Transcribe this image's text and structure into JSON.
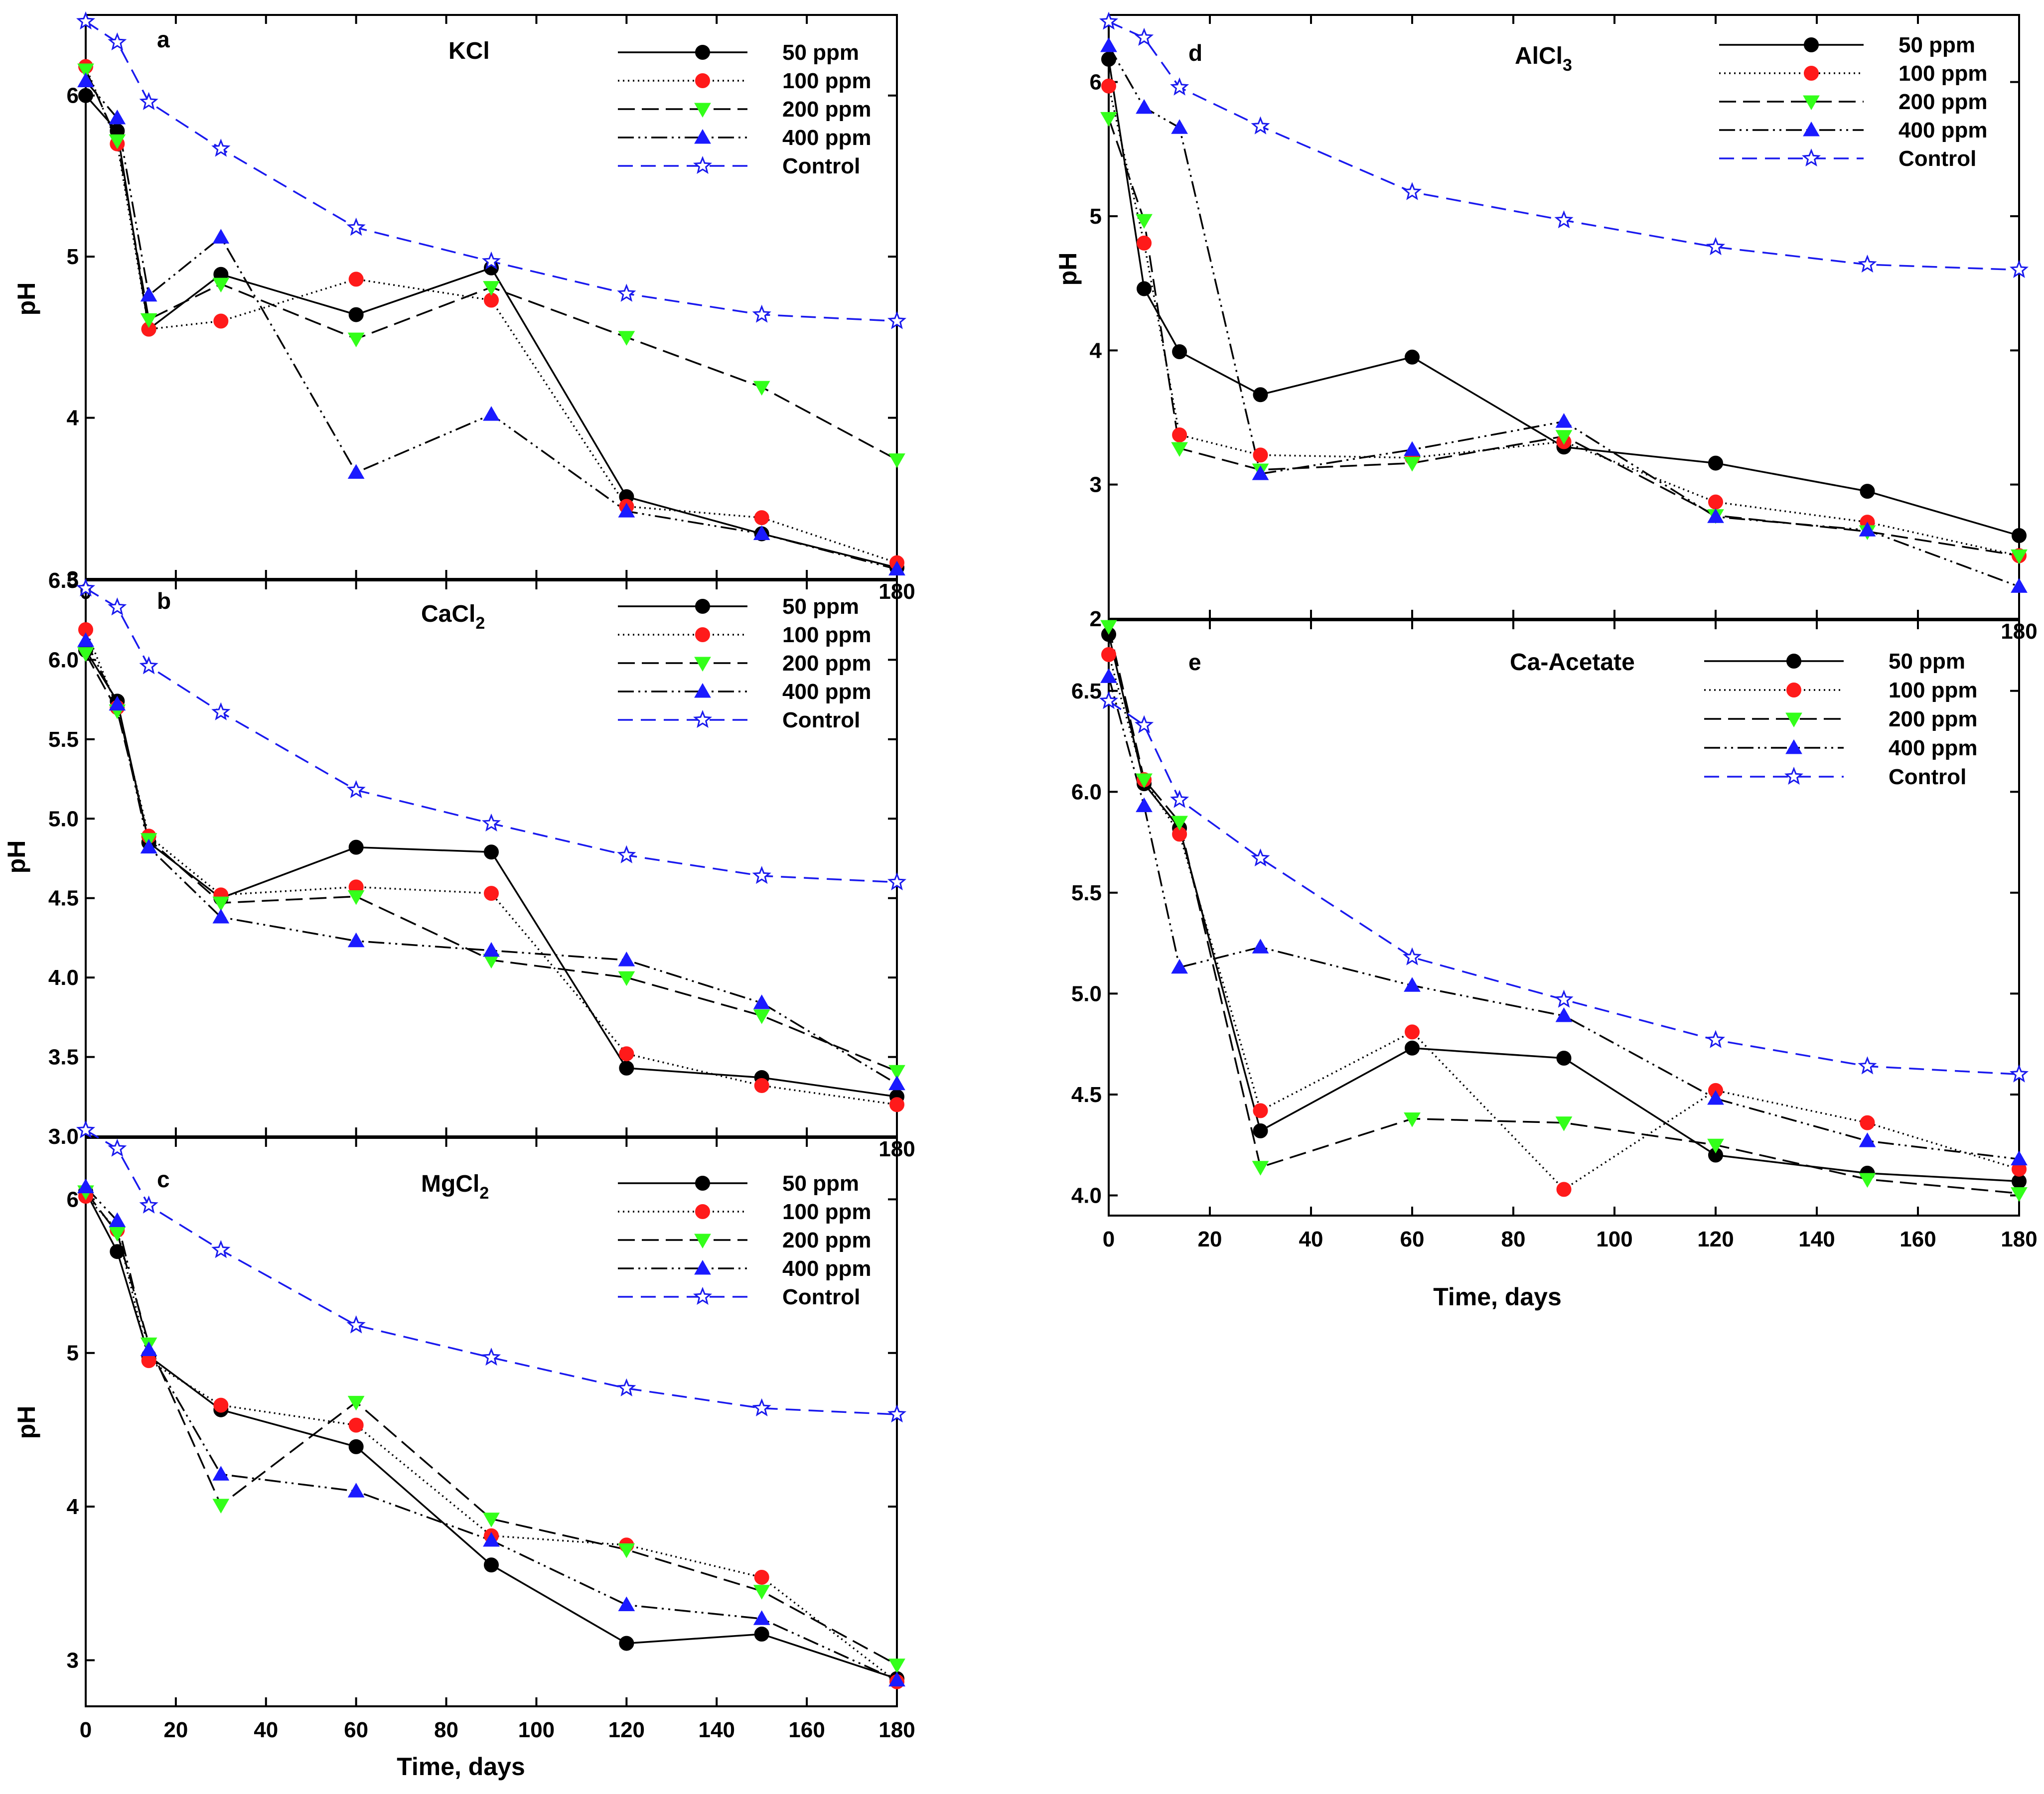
{
  "figure": {
    "ylabel": "pH",
    "xlabel": "Time, days"
  },
  "styles": {
    "50 ppm": {
      "color": "#000000",
      "dash": "none",
      "marker": "circle",
      "fill": "#000000"
    },
    "100 ppm": {
      "color": "#000000",
      "dash": "3 7",
      "marker": "circle",
      "fill": "#ff1a1a"
    },
    "200 ppm": {
      "color": "#000000",
      "dash": "34 14",
      "marker": "tri-down",
      "fill": "#33ff1a"
    },
    "400 ppm": {
      "color": "#000000",
      "dash": "32 9 4 9 4 9",
      "marker": "tri-up",
      "fill": "#1a1aff"
    },
    "Control": {
      "color": "#1a1aee",
      "dash": "30 16",
      "marker": "star",
      "fill": "#ffffff"
    }
  },
  "chart_data": [
    {
      "id": "a",
      "type": "line",
      "letter": "a",
      "title": "KCl",
      "title_sub": "",
      "xlabel": "",
      "ylabel": "pH",
      "xlim": [
        0,
        180
      ],
      "ylim": [
        3,
        6.5
      ],
      "yticks": [
        3,
        4,
        5,
        6
      ],
      "ytick_labels": [
        "3",
        "4",
        "5",
        "6"
      ],
      "xticks": [],
      "xtick_labels": [],
      "corner_tick_labels": [
        "0",
        "180"
      ],
      "x": [
        0,
        7,
        14,
        30,
        60,
        90,
        120,
        150,
        180
      ],
      "series": [
        {
          "name": "50 ppm",
          "values": [
            6.0,
            5.78,
            4.55,
            4.89,
            4.64,
            4.93,
            3.51,
            3.28,
            3.07
          ]
        },
        {
          "name": "100 ppm",
          "values": [
            6.18,
            5.7,
            4.55,
            4.6,
            4.86,
            4.73,
            3.45,
            3.38,
            3.1
          ]
        },
        {
          "name": "200 ppm",
          "values": [
            6.16,
            5.72,
            4.61,
            4.83,
            4.49,
            4.81,
            4.5,
            4.19,
            3.74
          ]
        },
        {
          "name": "400 ppm",
          "values": [
            6.09,
            5.86,
            4.76,
            5.12,
            3.66,
            4.02,
            3.42,
            3.28,
            3.06
          ]
        },
        {
          "name": "Control",
          "values": [
            6.46,
            6.33,
            5.96,
            5.67,
            5.18,
            4.97,
            4.77,
            4.64,
            4.6
          ]
        }
      ]
    },
    {
      "id": "b",
      "type": "line",
      "letter": "b",
      "title": "CaCl",
      "title_sub": "2",
      "xlabel": "",
      "ylabel": "pH",
      "xlim": [
        0,
        180
      ],
      "ylim": [
        3,
        6.5
      ],
      "yticks": [
        3,
        3.5,
        4,
        4.5,
        5,
        5.5,
        6,
        6.5
      ],
      "ytick_labels": [
        "3.0",
        "3.5",
        "4.0",
        "4.5",
        "5.0",
        "5.5",
        "6.0",
        "6.5"
      ],
      "xticks": [],
      "xtick_labels": [],
      "corner_tick_labels": [
        "180"
      ],
      "x": [
        0,
        7,
        14,
        30,
        60,
        90,
        120,
        150,
        180
      ],
      "series": [
        {
          "name": "50 ppm",
          "values": [
            6.06,
            5.74,
            4.85,
            4.5,
            4.82,
            4.79,
            3.43,
            3.37,
            3.25
          ]
        },
        {
          "name": "100 ppm",
          "values": [
            6.19,
            5.7,
            4.89,
            4.52,
            4.57,
            4.53,
            3.52,
            3.32,
            3.2
          ]
        },
        {
          "name": "200 ppm",
          "values": [
            6.04,
            5.68,
            4.87,
            4.47,
            4.51,
            4.11,
            4.0,
            3.76,
            3.41
          ]
        },
        {
          "name": "400 ppm",
          "values": [
            6.12,
            5.72,
            4.82,
            4.38,
            4.23,
            4.17,
            4.11,
            3.84,
            3.33
          ]
        },
        {
          "name": "Control",
          "values": [
            6.45,
            6.33,
            5.96,
            5.67,
            5.18,
            4.97,
            4.77,
            4.64,
            4.6
          ]
        }
      ]
    },
    {
      "id": "c",
      "type": "line",
      "letter": "c",
      "title": "MgCl",
      "title_sub": "2",
      "xlabel": "Time, days",
      "ylabel": "pH",
      "xlim": [
        0,
        180
      ],
      "ylim": [
        2.7,
        6.4
      ],
      "yticks": [
        3,
        4,
        5,
        6
      ],
      "ytick_labels": [
        "3",
        "4",
        "5",
        "6"
      ],
      "xticks": [
        0,
        20,
        40,
        60,
        80,
        100,
        120,
        140,
        160,
        180
      ],
      "xtick_labels": [
        "0",
        "20",
        "40",
        "60",
        "80",
        "100",
        "120",
        "140",
        "160",
        "180"
      ],
      "corner_tick_labels": [],
      "x": [
        0,
        7,
        14,
        30,
        60,
        90,
        120,
        150,
        180
      ],
      "series": [
        {
          "name": "50 ppm",
          "values": [
            6.05,
            5.66,
            4.98,
            4.63,
            4.39,
            3.62,
            3.11,
            3.17,
            2.88
          ]
        },
        {
          "name": "100 ppm",
          "values": [
            6.02,
            5.8,
            4.95,
            4.66,
            4.53,
            3.81,
            3.75,
            3.54,
            2.86
          ]
        },
        {
          "name": "200 ppm",
          "values": [
            6.05,
            5.78,
            5.06,
            4.01,
            4.68,
            3.92,
            3.72,
            3.45,
            2.97
          ]
        },
        {
          "name": "400 ppm",
          "values": [
            6.08,
            5.86,
            5.02,
            4.21,
            4.1,
            3.78,
            3.36,
            3.27,
            2.87
          ]
        },
        {
          "name": "Control",
          "values": [
            6.45,
            6.33,
            5.96,
            5.67,
            5.18,
            4.97,
            4.77,
            4.64,
            4.6
          ]
        }
      ]
    },
    {
      "id": "d",
      "type": "line",
      "letter": "d",
      "title": "AlCl",
      "title_sub": "3",
      "xlabel": "",
      "ylabel": "pH",
      "xlim": [
        0,
        180
      ],
      "ylim": [
        2,
        6.5
      ],
      "yticks": [
        2,
        3,
        4,
        5,
        6
      ],
      "ytick_labels": [
        "2",
        "3",
        "4",
        "5",
        "6"
      ],
      "xticks": [],
      "xtick_labels": [],
      "corner_tick_labels": [
        "180"
      ],
      "x": [
        0,
        7,
        14,
        30,
        60,
        90,
        120,
        150,
        180
      ],
      "series": [
        {
          "name": "50 ppm",
          "values": [
            6.17,
            4.46,
            3.99,
            3.67,
            3.95,
            3.28,
            3.16,
            2.95,
            2.62
          ]
        },
        {
          "name": "100 ppm",
          "values": [
            5.97,
            4.8,
            3.37,
            3.22,
            3.2,
            3.32,
            2.87,
            2.72,
            2.47
          ]
        },
        {
          "name": "200 ppm",
          "values": [
            5.73,
            4.97,
            3.27,
            3.11,
            3.16,
            3.36,
            2.77,
            2.65,
            2.47
          ]
        },
        {
          "name": "400 ppm",
          "values": [
            6.27,
            5.81,
            5.66,
            3.08,
            3.26,
            3.47,
            2.76,
            2.66,
            2.24
          ]
        },
        {
          "name": "Control",
          "values": [
            6.45,
            6.33,
            5.96,
            5.67,
            5.18,
            4.97,
            4.77,
            4.64,
            4.6
          ]
        }
      ]
    },
    {
      "id": "e",
      "type": "line",
      "letter": "e",
      "title": "Ca-Acetate",
      "title_sub": "",
      "xlabel": "Time, days",
      "ylabel": "",
      "xlim": [
        0,
        180
      ],
      "ylim": [
        3.9,
        6.85
      ],
      "yticks": [
        4,
        4.5,
        5,
        5.5,
        6,
        6.5
      ],
      "ytick_labels": [
        "4.0",
        "4.5",
        "5.0",
        "5.5",
        "6.0",
        "6.5"
      ],
      "xticks": [
        0,
        20,
        40,
        60,
        80,
        100,
        120,
        140,
        160,
        180
      ],
      "xtick_labels": [
        "0",
        "20",
        "40",
        "60",
        "80",
        "100",
        "120",
        "140",
        "160",
        "180"
      ],
      "corner_tick_labels": [],
      "x": [
        0,
        7,
        14,
        30,
        60,
        90,
        120,
        150,
        180
      ],
      "series": [
        {
          "name": "50 ppm",
          "values": [
            6.78,
            6.04,
            5.82,
            4.32,
            4.73,
            4.68,
            4.2,
            4.11,
            4.07
          ]
        },
        {
          "name": "100 ppm",
          "values": [
            6.68,
            6.06,
            5.79,
            4.42,
            4.81,
            4.03,
            4.52,
            4.36,
            4.13
          ]
        },
        {
          "name": "200 ppm",
          "values": [
            6.82,
            6.06,
            5.85,
            4.14,
            4.38,
            4.36,
            4.25,
            4.08,
            4.01
          ]
        },
        {
          "name": "400 ppm",
          "values": [
            6.57,
            5.93,
            5.13,
            5.23,
            5.04,
            4.89,
            4.48,
            4.27,
            4.18
          ]
        },
        {
          "name": "Control",
          "values": [
            6.45,
            6.33,
            5.96,
            5.67,
            5.18,
            4.97,
            4.77,
            4.64,
            4.6
          ]
        }
      ]
    }
  ]
}
